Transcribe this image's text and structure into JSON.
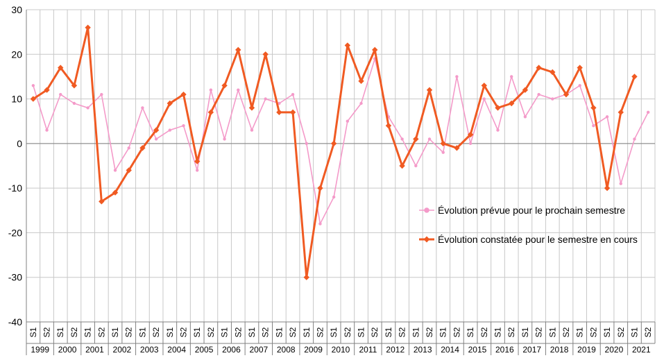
{
  "chart_data": {
    "type": "line",
    "title": "",
    "xlabel": "",
    "ylabel": "",
    "ylim": [
      -40,
      30
    ],
    "yticks": [
      -40,
      -30,
      -20,
      -10,
      0,
      10,
      20,
      30
    ],
    "grid": true,
    "legend_position": "right-middle",
    "semester_labels": [
      "S1",
      "S2"
    ],
    "years": [
      "1999",
      "2000",
      "2001",
      "2002",
      "2003",
      "2004",
      "2005",
      "2006",
      "2007",
      "2008",
      "2009",
      "2010",
      "2011",
      "2012",
      "2013",
      "2014",
      "2015",
      "2016",
      "2017",
      "2018",
      "2019",
      "2020",
      "2021"
    ],
    "series": [
      {
        "name": "Évolution prévue pour le prochain semestre",
        "color": "#f49ac9",
        "marker": "circle",
        "values": [
          13,
          3,
          11,
          9,
          8,
          11,
          -6,
          -1,
          8,
          1,
          3,
          4,
          -6,
          12,
          1,
          12,
          3,
          10,
          9,
          11,
          0,
          -18,
          -12,
          5,
          9,
          19,
          6,
          1,
          -5,
          1,
          -2,
          15,
          0,
          10,
          3,
          15,
          6,
          11,
          10,
          11,
          13,
          4,
          6,
          -9,
          1,
          7
        ]
      },
      {
        "name": "Évolution constatée pour le semestre en cours",
        "color": "#f05a22",
        "marker": "diamond",
        "values": [
          10,
          12,
          17,
          13,
          26,
          -13,
          -11,
          -6,
          -1,
          3,
          9,
          11,
          -4,
          7,
          13,
          21,
          8,
          20,
          7,
          7,
          -30,
          -10,
          0,
          22,
          14,
          21,
          4,
          -5,
          1,
          12,
          0,
          -1,
          2,
          13,
          8,
          9,
          12,
          17,
          16,
          11,
          17,
          8,
          -10,
          7,
          15,
          null
        ]
      }
    ]
  }
}
